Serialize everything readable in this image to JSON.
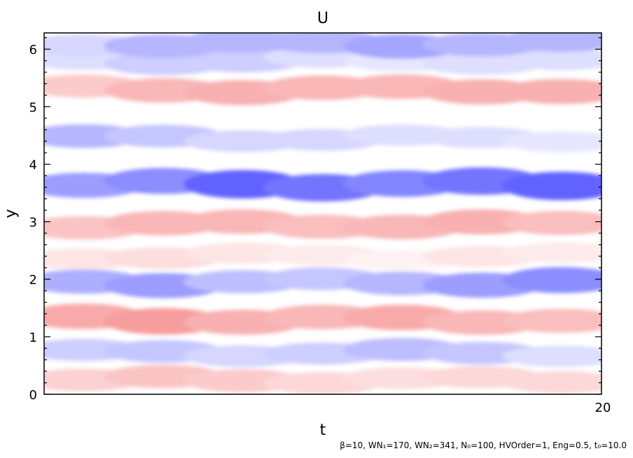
{
  "chart_data": {
    "type": "heatmap",
    "title": "U",
    "xlabel": "t",
    "ylabel": "y",
    "xlim": [
      0,
      20
    ],
    "ylim": [
      0,
      6.283
    ],
    "x_tick_labels": [
      "20"
    ],
    "x_tick_values": [
      20
    ],
    "y_ticks": [
      0,
      1,
      2,
      3,
      4,
      5,
      6
    ],
    "y_tick_labels": [
      "0",
      "1",
      "2",
      "3",
      "4",
      "5",
      "6"
    ],
    "colormap": {
      "negative": "#5a5cff",
      "zero": "#ffffff",
      "positive": "#f47c7c"
    },
    "bands": [
      {
        "y": 0.25,
        "sign": 1,
        "amp": [
          0.35,
          0.45,
          0.4,
          0.3,
          0.25,
          0.3,
          0.3
        ]
      },
      {
        "y": 0.72,
        "sign": -1,
        "amp": [
          0.3,
          0.35,
          0.25,
          0.3,
          0.4,
          0.35,
          0.2
        ]
      },
      {
        "y": 1.3,
        "sign": 1,
        "amp": [
          0.65,
          0.75,
          0.6,
          0.55,
          0.65,
          0.55,
          0.5
        ]
      },
      {
        "y": 1.95,
        "sign": -1,
        "amp": [
          0.5,
          0.6,
          0.4,
          0.35,
          0.45,
          0.6,
          0.7
        ]
      },
      {
        "y": 2.4,
        "sign": 1,
        "amp": [
          0.2,
          0.25,
          0.2,
          0.15,
          0.1,
          0.2,
          0.15
        ]
      },
      {
        "y": 2.95,
        "sign": 1,
        "amp": [
          0.45,
          0.55,
          0.55,
          0.5,
          0.55,
          0.6,
          0.5
        ]
      },
      {
        "y": 3.65,
        "sign": -1,
        "amp": [
          0.6,
          0.7,
          0.95,
          0.85,
          0.75,
          0.85,
          0.95
        ]
      },
      {
        "y": 4.45,
        "sign": -1,
        "amp": [
          0.45,
          0.35,
          0.25,
          0.25,
          0.2,
          0.2,
          0.15
        ]
      },
      {
        "y": 5.3,
        "sign": 1,
        "amp": [
          0.4,
          0.55,
          0.6,
          0.55,
          0.55,
          0.6,
          0.6
        ]
      },
      {
        "y": 5.8,
        "sign": -1,
        "amp": [
          0.2,
          0.3,
          0.3,
          0.2,
          0.15,
          0.2,
          0.2
        ]
      },
      {
        "y": 6.1,
        "sign": -1,
        "amp": [
          0.25,
          0.45,
          0.45,
          0.45,
          0.55,
          0.45,
          0.45
        ]
      }
    ]
  },
  "footer": {
    "params_text": "β=10, WN₁=170, WN₂=341, N₀=100, HVOrder=1, Eng=0.5, t₀=10.0"
  }
}
